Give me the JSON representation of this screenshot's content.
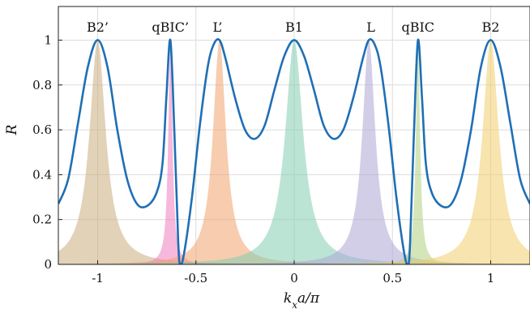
{
  "chart_data": {
    "type": "area",
    "xlabel_main": "k",
    "xlabel_sub": "x",
    "xlabel_rest": "a/π",
    "ylabel": "R",
    "xlim": [
      -1.2,
      1.2
    ],
    "ylim": [
      0,
      1.15
    ],
    "grid": true,
    "xticks": [
      {
        "value": -1,
        "label": "-1"
      },
      {
        "value": -0.5,
        "label": "-0.5"
      },
      {
        "value": 0,
        "label": "0"
      },
      {
        "value": 0.5,
        "label": "0.5"
      },
      {
        "value": 1,
        "label": "1"
      }
    ],
    "yticks": [
      {
        "value": 0,
        "label": "0"
      },
      {
        "value": 0.2,
        "label": "0.2"
      },
      {
        "value": 0.4,
        "label": "0.4"
      },
      {
        "value": 0.6,
        "label": "0.6"
      },
      {
        "value": 0.8,
        "label": "0.8"
      },
      {
        "value": 1,
        "label": "1"
      }
    ],
    "peak_labels": [
      {
        "text": "B2’",
        "x": -1.0
      },
      {
        "text": "qBIC’",
        "x": -0.63
      },
      {
        "text": "L’",
        "x": -0.39
      },
      {
        "text": "B1",
        "x": 0.0
      },
      {
        "text": "L",
        "x": 0.39
      },
      {
        "text": "qBIC",
        "x": 0.63
      },
      {
        "text": "B2",
        "x": 1.0
      }
    ],
    "filled_peaks": [
      {
        "center": -1.0,
        "width": 0.1,
        "color": "#c9ad7e"
      },
      {
        "center": -0.63,
        "width": 0.025,
        "color": "#ee7ec0"
      },
      {
        "center": -0.38,
        "width": 0.08,
        "color": "#f2a36c"
      },
      {
        "center": 0.0,
        "width": 0.11,
        "color": "#84cdb0"
      },
      {
        "center": 0.38,
        "width": 0.08,
        "color": "#ada6d6"
      },
      {
        "center": 0.63,
        "width": 0.025,
        "color": "#b0cf82"
      },
      {
        "center": 1.0,
        "width": 0.1,
        "color": "#f1cd6c"
      }
    ],
    "total_curve": {
      "color": "#1f6fb5",
      "x": [
        -1.2,
        -1.15,
        -1.1,
        -1.05,
        -1.0,
        -0.95,
        -0.9,
        -0.85,
        -0.8,
        -0.75,
        -0.7,
        -0.67,
        -0.65,
        -0.63,
        -0.61,
        -0.59,
        -0.58,
        -0.56,
        -0.52,
        -0.48,
        -0.44,
        -0.41,
        -0.38,
        -0.35,
        -0.3,
        -0.25,
        -0.2,
        -0.15,
        -0.1,
        -0.05,
        0.0,
        0.05,
        0.1,
        0.15,
        0.2,
        0.25,
        0.3,
        0.35,
        0.38,
        0.41,
        0.44,
        0.48,
        0.52,
        0.56,
        0.58,
        0.59,
        0.61,
        0.63,
        0.65,
        0.67,
        0.7,
        0.75,
        0.8,
        0.85,
        0.9,
        0.95,
        1.0,
        1.05,
        1.1,
        1.15,
        1.2
      ],
      "y": [
        0.27,
        0.38,
        0.63,
        0.88,
        1.0,
        0.88,
        0.6,
        0.38,
        0.27,
        0.26,
        0.32,
        0.45,
        0.75,
        1.0,
        0.6,
        0.1,
        0.0,
        0.05,
        0.3,
        0.62,
        0.88,
        0.98,
        1.0,
        0.92,
        0.74,
        0.6,
        0.56,
        0.62,
        0.78,
        0.93,
        1.0,
        0.93,
        0.78,
        0.62,
        0.56,
        0.6,
        0.74,
        0.92,
        1.0,
        0.98,
        0.88,
        0.62,
        0.3,
        0.05,
        0.0,
        0.1,
        0.6,
        1.0,
        0.75,
        0.45,
        0.32,
        0.26,
        0.27,
        0.38,
        0.6,
        0.88,
        1.0,
        0.88,
        0.63,
        0.38,
        0.27
      ]
    }
  }
}
